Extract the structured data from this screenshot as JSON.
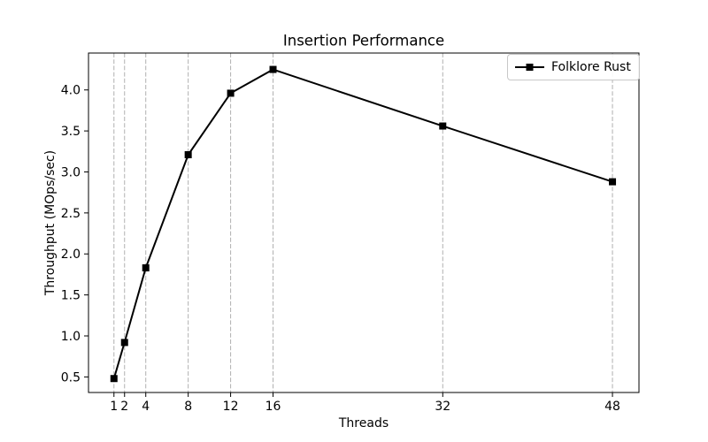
{
  "figure": {
    "background": "#ffffff"
  },
  "colors": {
    "text": "#000000",
    "spine": "#000000",
    "grid": "#b0b0b0",
    "legend_border": "#c8c8c8"
  },
  "chart_data": {
    "type": "line",
    "title": "Insertion Performance",
    "xlabel": "Threads",
    "ylabel": "Throughput (MOps/sec)",
    "x": [
      1,
      2,
      4,
      8,
      12,
      16,
      32,
      48
    ],
    "x_tick_labels": [
      "1",
      "2",
      "4",
      "8",
      "12",
      "16",
      "32",
      "48"
    ],
    "y_ticks": [
      0.5,
      1.0,
      1.5,
      2.0,
      2.5,
      3.0,
      3.5,
      4.0
    ],
    "xlim": [
      -1.4,
      50.5
    ],
    "ylim": [
      0.31,
      4.45
    ],
    "series": [
      {
        "name": "Folklore Rust",
        "marker": "square",
        "color": "#000000",
        "values": [
          0.48,
          0.92,
          1.83,
          3.21,
          3.96,
          4.25,
          3.56,
          2.88
        ]
      }
    ],
    "grid": {
      "axis": "x",
      "line_style": "dashed",
      "color": "#b0b0b0"
    },
    "legend": {
      "position": "upper right"
    }
  }
}
